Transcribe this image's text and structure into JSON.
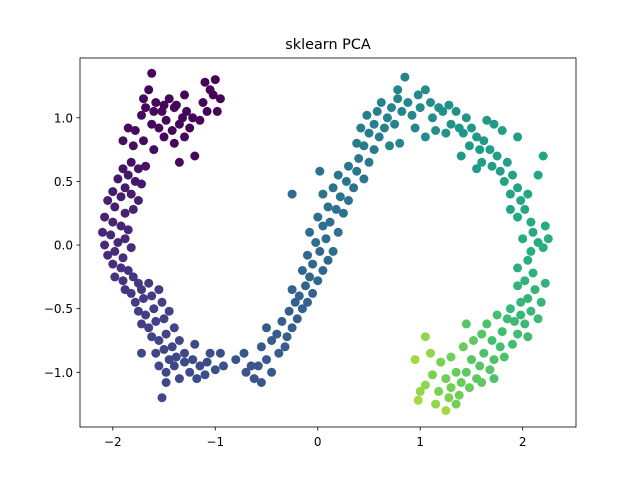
{
  "chart_data": {
    "type": "scatter",
    "title": "sklearn PCA",
    "xlabel": "",
    "ylabel": "",
    "xlim": [
      -2.32,
      2.52
    ],
    "ylim": [
      -1.43,
      1.47
    ],
    "xticks": [
      {
        "value": -2,
        "label": "−2"
      },
      {
        "value": -1,
        "label": "−1"
      },
      {
        "value": 0,
        "label": "0"
      },
      {
        "value": 1,
        "label": "1"
      },
      {
        "value": 2,
        "label": "2"
      }
    ],
    "yticks": [
      {
        "value": -1.0,
        "label": "−1.0"
      },
      {
        "value": -0.5,
        "label": "−0.5"
      },
      {
        "value": 0.0,
        "label": "0.0"
      },
      {
        "value": 0.5,
        "label": "0.5"
      },
      {
        "value": 1.0,
        "label": "1.0"
      }
    ],
    "grid": false,
    "colormap": "viridis",
    "marker_radius": 4.5,
    "points": [
      [
        -1.62,
        1.35,
        0.02
      ],
      [
        -1.65,
        1.22,
        0.02
      ],
      [
        -1.58,
        1.12,
        0.03
      ],
      [
        -1.7,
        1.15,
        0.03
      ],
      [
        -1.52,
        1.05,
        0.03
      ],
      [
        -1.45,
        1.15,
        0.02
      ],
      [
        -1.38,
        1.1,
        0.02
      ],
      [
        -1.3,
        1.18,
        0.02
      ],
      [
        -1.28,
        1.05,
        0.02
      ],
      [
        -1.22,
        1.0,
        0.02
      ],
      [
        -1.1,
        1.28,
        0.01
      ],
      [
        -1.05,
        1.22,
        0.01
      ],
      [
        -1.12,
        1.12,
        0.01
      ],
      [
        -1.0,
        1.3,
        0.01
      ],
      [
        -1.02,
        1.18,
        0.01
      ],
      [
        -0.95,
        1.15,
        0.01
      ],
      [
        -0.98,
        1.05,
        0.01
      ],
      [
        -1.08,
        1.05,
        0.01
      ],
      [
        -1.15,
        0.98,
        0.02
      ],
      [
        -1.25,
        0.92,
        0.02
      ],
      [
        -1.35,
        0.95,
        0.02
      ],
      [
        -1.42,
        0.9,
        0.02
      ],
      [
        -1.48,
        0.98,
        0.03
      ],
      [
        -1.55,
        0.92,
        0.03
      ],
      [
        -1.62,
        0.95,
        0.03
      ],
      [
        -1.72,
        1.02,
        0.04
      ],
      [
        -1.78,
        0.9,
        0.04
      ],
      [
        -1.85,
        0.92,
        0.04
      ],
      [
        -1.9,
        0.82,
        0.05
      ],
      [
        -1.8,
        0.78,
        0.05
      ],
      [
        -1.7,
        0.82,
        0.04
      ],
      [
        -1.6,
        0.75,
        0.05
      ],
      [
        -1.5,
        0.85,
        0.03
      ],
      [
        -1.4,
        0.8,
        0.03
      ],
      [
        -1.3,
        0.85,
        0.03
      ],
      [
        -1.32,
        1.0,
        0.02
      ],
      [
        -1.4,
        1.08,
        0.02
      ],
      [
        -1.5,
        1.1,
        0.02
      ],
      [
        -1.6,
        1.05,
        0.03
      ],
      [
        -1.68,
        1.08,
        0.03
      ],
      [
        -1.2,
        0.7,
        0.03
      ],
      [
        -1.35,
        0.65,
        0.04
      ],
      [
        -1.82,
        0.65,
        0.06
      ],
      [
        -1.75,
        0.6,
        0.07
      ],
      [
        -1.68,
        0.62,
        0.07
      ],
      [
        -1.9,
        0.6,
        0.07
      ],
      [
        -1.95,
        0.52,
        0.08
      ],
      [
        -1.85,
        0.55,
        0.08
      ],
      [
        -1.78,
        0.5,
        0.08
      ],
      [
        -1.72,
        0.48,
        0.09
      ],
      [
        -1.88,
        0.45,
        0.09
      ],
      [
        -2.0,
        0.42,
        0.1
      ],
      [
        -1.92,
        0.38,
        0.1
      ],
      [
        -1.82,
        0.4,
        0.1
      ],
      [
        -1.75,
        0.35,
        0.11
      ],
      [
        -2.05,
        0.35,
        0.11
      ],
      [
        -1.98,
        0.3,
        0.11
      ],
      [
        -1.88,
        0.25,
        0.12
      ],
      [
        -1.8,
        0.28,
        0.12
      ],
      [
        -2.08,
        0.22,
        0.12
      ],
      [
        -2.0,
        0.18,
        0.13
      ],
      [
        -1.92,
        0.15,
        0.13
      ],
      [
        -1.85,
        0.12,
        0.14
      ],
      [
        -2.1,
        0.1,
        0.14
      ],
      [
        -2.02,
        0.08,
        0.14
      ],
      [
        -1.95,
        0.02,
        0.15
      ],
      [
        -2.08,
        0.0,
        0.15
      ],
      [
        -1.88,
        0.05,
        0.15
      ],
      [
        -1.98,
        -0.05,
        0.16
      ],
      [
        -2.05,
        -0.08,
        0.16
      ],
      [
        -1.9,
        -0.1,
        0.17
      ],
      [
        -1.82,
        -0.02,
        0.16
      ],
      [
        -2.0,
        -0.15,
        0.17
      ],
      [
        -1.92,
        -0.18,
        0.18
      ],
      [
        -1.85,
        -0.2,
        0.18
      ],
      [
        -1.98,
        -0.25,
        0.19
      ],
      [
        -1.9,
        -0.28,
        0.19
      ],
      [
        -1.8,
        -0.25,
        0.19
      ],
      [
        -1.75,
        -0.3,
        0.2
      ],
      [
        -1.88,
        -0.35,
        0.2
      ],
      [
        -1.82,
        -0.38,
        0.21
      ],
      [
        -1.72,
        -0.35,
        0.21
      ],
      [
        -1.65,
        -0.3,
        0.21
      ],
      [
        -1.78,
        -0.45,
        0.22
      ],
      [
        -1.7,
        -0.42,
        0.22
      ],
      [
        -1.62,
        -0.4,
        0.22
      ],
      [
        -1.55,
        -0.35,
        0.22
      ],
      [
        -1.75,
        -0.52,
        0.23
      ],
      [
        -1.68,
        -0.55,
        0.23
      ],
      [
        -1.6,
        -0.5,
        0.23
      ],
      [
        -1.52,
        -0.45,
        0.23
      ],
      [
        -1.72,
        -0.62,
        0.24
      ],
      [
        -1.65,
        -0.65,
        0.24
      ],
      [
        -1.58,
        -0.6,
        0.24
      ],
      [
        -1.5,
        -0.58,
        0.24
      ],
      [
        -1.45,
        -0.52,
        0.24
      ],
      [
        -1.62,
        -0.72,
        0.25
      ],
      [
        -1.55,
        -0.75,
        0.25
      ],
      [
        -1.48,
        -0.7,
        0.25
      ],
      [
        -1.4,
        -0.65,
        0.25
      ],
      [
        -1.58,
        -0.85,
        0.26
      ],
      [
        -1.5,
        -0.82,
        0.26
      ],
      [
        -1.42,
        -0.8,
        0.26
      ],
      [
        -1.35,
        -0.75,
        0.26
      ],
      [
        -1.72,
        -0.85,
        0.26
      ],
      [
        -1.45,
        -0.9,
        0.27
      ],
      [
        -1.38,
        -0.88,
        0.27
      ],
      [
        -1.3,
        -0.85,
        0.27
      ],
      [
        -1.55,
        -0.95,
        0.27
      ],
      [
        -1.48,
        -1.0,
        0.28
      ],
      [
        -1.4,
        -0.95,
        0.28
      ],
      [
        -1.3,
        -0.92,
        0.28
      ],
      [
        -1.22,
        -0.9,
        0.29
      ],
      [
        -1.35,
        -1.05,
        0.28
      ],
      [
        -1.25,
        -1.0,
        0.29
      ],
      [
        -1.15,
        -0.95,
        0.29
      ],
      [
        -1.08,
        -0.92,
        0.3
      ],
      [
        -1.18,
        -1.05,
        0.3
      ],
      [
        -1.1,
        -1.02,
        0.3
      ],
      [
        -1.0,
        -0.98,
        0.31
      ],
      [
        -0.92,
        -0.95,
        0.31
      ],
      [
        -1.52,
        -1.2,
        0.27
      ],
      [
        -1.48,
        -1.08,
        0.27
      ],
      [
        -1.2,
        -0.78,
        0.28
      ],
      [
        -1.05,
        -0.85,
        0.3
      ],
      [
        -0.95,
        -0.85,
        0.31
      ],
      [
        -0.8,
        -0.9,
        0.32
      ],
      [
        -0.72,
        -0.85,
        0.33
      ],
      [
        -0.65,
        -0.95,
        0.33
      ],
      [
        -0.7,
        -1.0,
        0.33
      ],
      [
        -0.62,
        -1.05,
        0.34
      ],
      [
        -0.55,
        -1.08,
        0.34
      ],
      [
        -0.58,
        -0.95,
        0.34
      ],
      [
        -0.5,
        -0.9,
        0.35
      ],
      [
        -0.45,
        -1.0,
        0.35
      ],
      [
        -0.55,
        -0.8,
        0.35
      ],
      [
        -0.45,
        -0.75,
        0.36
      ],
      [
        -0.38,
        -0.85,
        0.36
      ],
      [
        -0.32,
        -0.8,
        0.37
      ],
      [
        -0.4,
        -0.7,
        0.37
      ],
      [
        -0.3,
        -0.72,
        0.37
      ],
      [
        -0.25,
        -0.65,
        0.38
      ],
      [
        -0.35,
        -0.6,
        0.38
      ],
      [
        -0.5,
        -0.65,
        0.36
      ],
      [
        -0.2,
        -0.58,
        0.38
      ],
      [
        -0.15,
        -0.5,
        0.39
      ],
      [
        -0.28,
        -0.52,
        0.38
      ],
      [
        -0.22,
        -0.45,
        0.39
      ],
      [
        -0.1,
        -0.45,
        0.4
      ],
      [
        -0.18,
        -0.4,
        0.4
      ],
      [
        -0.05,
        -0.38,
        0.4
      ],
      [
        -0.12,
        -0.32,
        0.41
      ],
      [
        -0.25,
        -0.35,
        0.4
      ],
      [
        -0.08,
        -0.25,
        0.41
      ],
      [
        0.0,
        -0.28,
        0.42
      ],
      [
        -0.15,
        -0.2,
        0.41
      ],
      [
        -0.05,
        -0.15,
        0.42
      ],
      [
        0.05,
        -0.2,
        0.42
      ],
      [
        -0.1,
        -0.08,
        0.43
      ],
      [
        0.02,
        -0.05,
        0.43
      ],
      [
        0.1,
        -0.12,
        0.43
      ],
      [
        -0.02,
        0.02,
        0.44
      ],
      [
        0.08,
        0.05,
        0.44
      ],
      [
        0.15,
        -0.05,
        0.44
      ],
      [
        -0.08,
        0.1,
        0.44
      ],
      [
        0.05,
        0.15,
        0.45
      ],
      [
        0.12,
        0.18,
        0.45
      ],
      [
        0.2,
        0.1,
        0.45
      ],
      [
        0.0,
        0.22,
        0.45
      ],
      [
        0.18,
        0.28,
        0.46
      ],
      [
        0.1,
        0.3,
        0.46
      ],
      [
        0.25,
        0.25,
        0.46
      ],
      [
        0.05,
        0.4,
        0.47
      ],
      [
        0.15,
        0.45,
        0.47
      ],
      [
        0.22,
        0.38,
        0.47
      ],
      [
        0.3,
        0.35,
        0.47
      ],
      [
        0.28,
        0.5,
        0.48
      ],
      [
        0.35,
        0.45,
        0.48
      ],
      [
        0.2,
        0.55,
        0.48
      ],
      [
        0.38,
        0.58,
        0.49
      ],
      [
        0.45,
        0.52,
        0.49
      ],
      [
        0.3,
        0.62,
        0.49
      ],
      [
        0.4,
        0.68,
        0.5
      ],
      [
        0.5,
        0.65,
        0.5
      ],
      [
        0.02,
        0.58,
        0.47
      ],
      [
        -0.25,
        0.4,
        0.44
      ],
      [
        0.45,
        0.78,
        0.51
      ],
      [
        0.55,
        0.75,
        0.51
      ],
      [
        0.38,
        0.8,
        0.51
      ],
      [
        0.5,
        0.88,
        0.52
      ],
      [
        0.6,
        0.85,
        0.53
      ],
      [
        0.42,
        0.92,
        0.52
      ],
      [
        0.55,
        0.95,
        0.53
      ],
      [
        0.65,
        0.92,
        0.54
      ],
      [
        0.48,
        1.02,
        0.53
      ],
      [
        0.58,
        1.05,
        0.54
      ],
      [
        0.68,
        1.0,
        0.55
      ],
      [
        0.75,
        0.95,
        0.55
      ],
      [
        0.62,
        1.12,
        0.55
      ],
      [
        0.72,
        1.08,
        0.56
      ],
      [
        0.82,
        1.05,
        0.57
      ],
      [
        0.78,
        1.15,
        0.57
      ],
      [
        0.88,
        1.12,
        0.58
      ],
      [
        0.92,
        1.02,
        0.58
      ],
      [
        0.85,
        1.32,
        0.57
      ],
      [
        0.78,
        1.22,
        0.57
      ],
      [
        0.98,
        1.18,
        0.59
      ],
      [
        1.05,
        1.22,
        0.6
      ],
      [
        1.0,
        1.08,
        0.6
      ],
      [
        1.1,
        1.12,
        0.61
      ],
      [
        1.18,
        1.08,
        0.62
      ],
      [
        1.12,
        1.0,
        0.62
      ],
      [
        1.22,
        1.05,
        0.63
      ],
      [
        1.28,
        1.1,
        0.63
      ],
      [
        1.35,
        1.05,
        0.64
      ],
      [
        1.3,
        0.95,
        0.64
      ],
      [
        1.25,
        0.88,
        0.64
      ],
      [
        1.38,
        0.92,
        0.65
      ],
      [
        1.45,
        1.0,
        0.65
      ],
      [
        1.42,
        0.88,
        0.66
      ],
      [
        1.5,
        0.92,
        0.66
      ],
      [
        1.55,
        0.85,
        0.67
      ],
      [
        1.48,
        0.78,
        0.67
      ],
      [
        1.58,
        0.75,
        0.68
      ],
      [
        1.62,
        0.82,
        0.68
      ],
      [
        1.68,
        0.75,
        0.69
      ],
      [
        1.6,
        0.65,
        0.69
      ],
      [
        1.7,
        0.62,
        0.7
      ],
      [
        1.75,
        0.7,
        0.7
      ],
      [
        1.78,
        0.58,
        0.71
      ],
      [
        1.85,
        0.65,
        0.71
      ],
      [
        1.82,
        0.5,
        0.72
      ],
      [
        1.9,
        0.55,
        0.72
      ],
      [
        1.95,
        0.45,
        0.73
      ],
      [
        1.88,
        0.4,
        0.73
      ],
      [
        1.98,
        0.35,
        0.74
      ],
      [
        2.05,
        0.4,
        0.74
      ],
      [
        2.02,
        0.28,
        0.75
      ],
      [
        1.95,
        0.22,
        0.75
      ],
      [
        2.08,
        0.18,
        0.76
      ],
      [
        2.1,
        0.1,
        0.76
      ],
      [
        2.0,
        0.05,
        0.77
      ],
      [
        2.15,
        0.02,
        0.77
      ],
      [
        2.08,
        -0.05,
        0.78
      ],
      [
        2.2,
        -0.02,
        0.78
      ],
      [
        2.22,
        0.15,
        0.77
      ],
      [
        2.15,
        0.55,
        0.74
      ],
      [
        2.2,
        0.7,
        0.73
      ],
      [
        1.95,
        0.85,
        0.7
      ],
      [
        1.8,
        0.9,
        0.69
      ],
      [
        1.72,
        0.95,
        0.68
      ],
      [
        1.65,
        0.98,
        0.67
      ],
      [
        0.95,
        0.92,
        0.59
      ],
      [
        1.05,
        0.85,
        0.61
      ],
      [
        1.15,
        0.9,
        0.62
      ],
      [
        0.8,
        0.8,
        0.58
      ],
      [
        0.7,
        0.78,
        0.56
      ],
      [
        1.55,
        0.6,
        0.68
      ],
      [
        1.4,
        0.7,
        0.66
      ],
      [
        2.05,
        -0.12,
        0.79
      ],
      [
        1.95,
        -0.18,
        0.79
      ],
      [
        2.1,
        -0.22,
        0.8
      ],
      [
        2.02,
        -0.28,
        0.81
      ],
      [
        1.95,
        -0.32,
        0.81
      ],
      [
        2.12,
        -0.35,
        0.82
      ],
      [
        2.05,
        -0.42,
        0.82
      ],
      [
        1.98,
        -0.45,
        0.83
      ],
      [
        2.18,
        -0.45,
        0.83
      ],
      [
        2.08,
        -0.52,
        0.84
      ],
      [
        1.98,
        -0.55,
        0.84
      ],
      [
        1.88,
        -0.5,
        0.84
      ],
      [
        2.15,
        -0.58,
        0.85
      ],
      [
        2.02,
        -0.62,
        0.85
      ],
      [
        1.92,
        -0.6,
        0.85
      ],
      [
        1.85,
        -0.58,
        0.86
      ],
      [
        2.05,
        -0.72,
        0.86
      ],
      [
        1.95,
        -0.7,
        0.87
      ],
      [
        1.8,
        -0.68,
        0.87
      ],
      [
        1.9,
        -0.78,
        0.88
      ],
      [
        1.78,
        -0.8,
        0.88
      ],
      [
        1.7,
        -0.75,
        0.88
      ],
      [
        1.82,
        -0.88,
        0.89
      ],
      [
        1.72,
        -0.9,
        0.89
      ],
      [
        1.62,
        -0.85,
        0.89
      ],
      [
        1.68,
        -0.98,
        0.9
      ],
      [
        1.58,
        -0.95,
        0.9
      ],
      [
        1.5,
        -0.9,
        0.9
      ],
      [
        1.55,
        -1.05,
        0.91
      ],
      [
        1.45,
        -1.0,
        0.91
      ],
      [
        1.4,
        -1.08,
        0.92
      ],
      [
        1.48,
        -1.12,
        0.92
      ],
      [
        1.35,
        -1.0,
        0.92
      ],
      [
        1.3,
        -1.12,
        0.93
      ],
      [
        1.38,
        -1.18,
        0.93
      ],
      [
        1.25,
        -1.05,
        0.93
      ],
      [
        1.18,
        -1.15,
        0.94
      ],
      [
        1.28,
        -1.2,
        0.94
      ],
      [
        1.12,
        -1.02,
        0.94
      ],
      [
        1.05,
        -1.1,
        0.95
      ],
      [
        1.0,
        -1.15,
        0.95
      ],
      [
        0.98,
        -1.22,
        0.96
      ],
      [
        1.25,
        -1.3,
        0.96
      ],
      [
        1.15,
        -1.25,
        0.95
      ],
      [
        0.95,
        -0.9,
        0.96
      ],
      [
        1.1,
        -0.85,
        0.95
      ],
      [
        1.2,
        -0.92,
        0.94
      ],
      [
        1.3,
        -0.88,
        0.93
      ],
      [
        1.42,
        -0.8,
        0.92
      ],
      [
        1.52,
        -0.75,
        0.91
      ],
      [
        1.6,
        -0.7,
        0.9
      ],
      [
        1.65,
        -0.62,
        0.89
      ],
      [
        1.75,
        -0.55,
        0.88
      ],
      [
        1.05,
        -0.72,
        0.95
      ],
      [
        1.45,
        -0.62,
        0.9
      ],
      [
        1.6,
        -1.08,
        0.91
      ],
      [
        1.35,
        -1.25,
        0.93
      ],
      [
        1.72,
        -1.05,
        0.89
      ],
      [
        2.22,
        -0.3,
        0.81
      ],
      [
        2.25,
        0.05,
        0.78
      ],
      [
        1.88,
        0.28,
        0.74
      ]
    ]
  }
}
